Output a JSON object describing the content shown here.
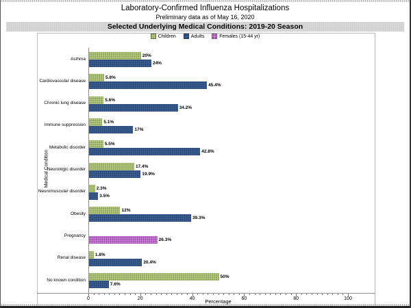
{
  "header": {
    "title": "Laboratory-Confirmed Influenza Hospitalizations",
    "subtitle": "Preliminary data as of May 16, 2020",
    "banner": "Selected Underlying Medical Conditions: 2019-20 Season"
  },
  "legend": [
    {
      "label": "Children",
      "series": "children",
      "color": "#92a95a"
    },
    {
      "label": "Adults",
      "series": "adults",
      "color": "#3b5f93"
    },
    {
      "label": "Females (15-44 yr)",
      "series": "females",
      "color": "#c583cf"
    }
  ],
  "chart_data": {
    "type": "bar",
    "orientation": "horizontal",
    "title": "Selected Underlying Medical Conditions: 2019-20 Season",
    "xlabel": "Percentage",
    "ylabel": "Medical Condition",
    "xlim": [
      0,
      100
    ],
    "xticks": [
      0,
      20,
      40,
      60,
      80,
      100
    ],
    "minor_tick_step": 2,
    "grid": false,
    "legend_position": "top",
    "categories": [
      "Asthma",
      "Cardiovascular disease",
      "Chronic lung disease",
      "Immune suppression",
      "Metabolic disorder",
      "Neurologic disorder",
      "Neuromuscular disorder",
      "Obesity",
      "Pregnancy",
      "Renal disease",
      "No known condition"
    ],
    "series": [
      {
        "name": "Children",
        "color": "#92a95a",
        "values": [
          20,
          5.8,
          5.6,
          5.1,
          5.5,
          17.4,
          2.3,
          12,
          null,
          1.8,
          50
        ],
        "labels": [
          "20%",
          "5.8%",
          "5.6%",
          "5.1%",
          "5.5%",
          "17.4%",
          "2.3%",
          "12%",
          "",
          "1.8%",
          "50%"
        ]
      },
      {
        "name": "Adults",
        "color": "#3b5f93",
        "values": [
          24,
          45.4,
          34.2,
          17,
          42.8,
          19.9,
          3.5,
          39.3,
          null,
          20.4,
          7.6
        ],
        "labels": [
          "24%",
          "45.4%",
          "34.2%",
          "17%",
          "42.8%",
          "19.9%",
          "3.5%",
          "39.3%",
          "",
          "20.4%",
          "7.6%"
        ]
      },
      {
        "name": "Females (15-44 yr)",
        "color": "#c583cf",
        "values": [
          null,
          null,
          null,
          null,
          null,
          null,
          null,
          null,
          26.3,
          null,
          null
        ],
        "labels": [
          "",
          "",
          "",
          "",
          "",
          "",
          "",
          "",
          "26.3%",
          "",
          ""
        ]
      }
    ]
  }
}
